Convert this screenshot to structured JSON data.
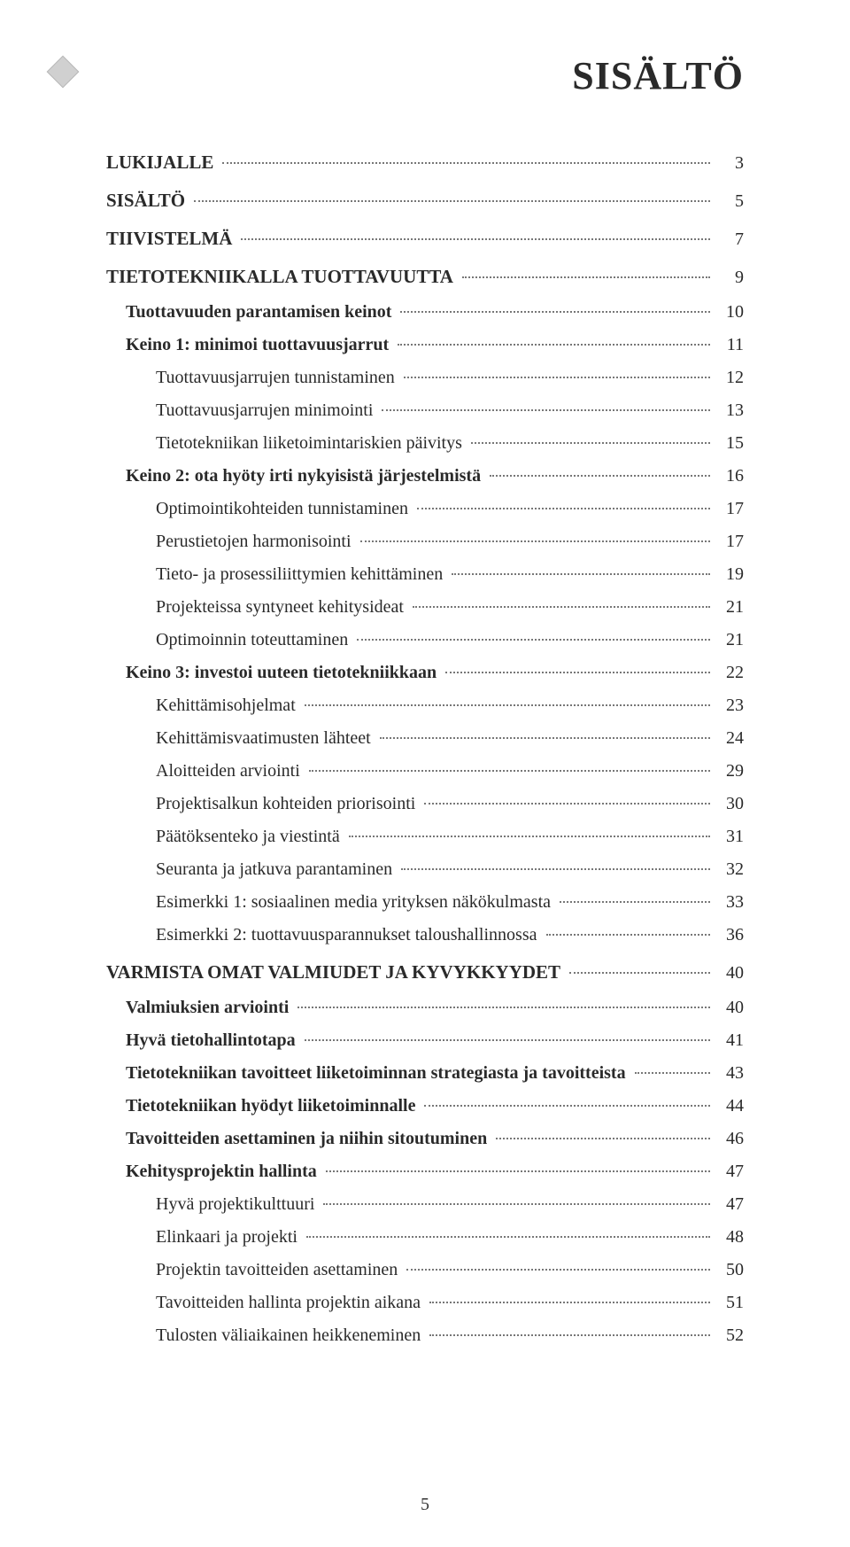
{
  "page_title": "SISÄLTÖ",
  "page_number": "5",
  "colors": {
    "background": "#ffffff",
    "text": "#2a2a2a",
    "diamond_fill": "#d0d0d0",
    "diamond_border": "#b8b8b8",
    "leader": "#777777"
  },
  "typography": {
    "title_fontsize": 44,
    "body_fontsize": 20,
    "font_family": "Georgia, Times New Roman, serif"
  },
  "toc": [
    {
      "level": 0,
      "label": "LUKIJALLE",
      "page": "3"
    },
    {
      "level": 0,
      "label": "SISÄLTÖ",
      "page": "5"
    },
    {
      "level": 0,
      "label": "TIIVISTELMÄ",
      "page": "7"
    },
    {
      "level": 0,
      "label": "TIETOTEKNIIKALLA TUOTTAVUUTTA",
      "page": "9"
    },
    {
      "level": 1,
      "label": "Tuottavuuden parantamisen keinot",
      "page": "10"
    },
    {
      "level": 1,
      "label": "Keino 1: minimoi tuottavuusjarrut",
      "page": "11"
    },
    {
      "level": 2,
      "label": "Tuottavuusjarrujen tunnistaminen",
      "page": "12"
    },
    {
      "level": 2,
      "label": "Tuottavuusjarrujen minimointi",
      "page": "13"
    },
    {
      "level": 2,
      "label": "Tietotekniikan liiketoimintariskien päivitys",
      "page": "15"
    },
    {
      "level": 1,
      "label": "Keino 2: ota hyöty irti nykyisistä järjestelmistä",
      "page": "16"
    },
    {
      "level": 2,
      "label": "Optimointikohteiden tunnistaminen",
      "page": "17"
    },
    {
      "level": 2,
      "label": "Perustietojen harmonisointi",
      "page": "17"
    },
    {
      "level": 2,
      "label": "Tieto- ja prosessiliittymien kehittäminen",
      "page": "19"
    },
    {
      "level": 2,
      "label": "Projekteissa syntyneet kehitysideat",
      "page": "21"
    },
    {
      "level": 2,
      "label": "Optimoinnin toteuttaminen",
      "page": "21"
    },
    {
      "level": 1,
      "label": "Keino 3: investoi uuteen tietotekniikkaan",
      "page": "22"
    },
    {
      "level": 2,
      "label": "Kehittämisohjelmat",
      "page": "23"
    },
    {
      "level": 2,
      "label": "Kehittämisvaatimusten lähteet",
      "page": "24"
    },
    {
      "level": 2,
      "label": "Aloitteiden arviointi",
      "page": "29"
    },
    {
      "level": 2,
      "label": "Projektisalkun kohteiden priorisointi",
      "page": "30"
    },
    {
      "level": 2,
      "label": "Päätöksenteko ja viestintä",
      "page": "31"
    },
    {
      "level": 2,
      "label": "Seuranta ja jatkuva parantaminen",
      "page": "32"
    },
    {
      "level": 2,
      "label": "Esimerkki 1: sosiaalinen media yrityksen näkökulmasta",
      "page": "33"
    },
    {
      "level": 2,
      "label": "Esimerkki 2: tuottavuusparannukset taloushallinnossa",
      "page": "36"
    },
    {
      "level": 0,
      "label": "VARMISTA OMAT VALMIUDET JA KYVYKKYYDET",
      "page": "40"
    },
    {
      "level": 1,
      "label": "Valmiuksien arviointi",
      "page": "40"
    },
    {
      "level": 1,
      "label": "Hyvä tietohallintotapa",
      "page": "41"
    },
    {
      "level": 1,
      "label": "Tietotekniikan tavoitteet liiketoiminnan strategiasta ja tavoitteista",
      "page": "43"
    },
    {
      "level": 1,
      "label": "Tietotekniikan hyödyt liiketoiminnalle",
      "page": "44"
    },
    {
      "level": 1,
      "label": "Tavoitteiden asettaminen ja niihin sitoutuminen",
      "page": "46"
    },
    {
      "level": 1,
      "label": "Kehitysprojektin hallinta",
      "page": "47"
    },
    {
      "level": 2,
      "label": "Hyvä projektikulttuuri",
      "page": "47"
    },
    {
      "level": 2,
      "label": "Elinkaari ja projekti",
      "page": "48"
    },
    {
      "level": 2,
      "label": "Projektin tavoitteiden asettaminen",
      "page": "50"
    },
    {
      "level": 2,
      "label": "Tavoitteiden hallinta projektin aikana",
      "page": "51"
    },
    {
      "level": 2,
      "label": "Tulosten väliaikainen heikkeneminen",
      "page": "52"
    }
  ]
}
